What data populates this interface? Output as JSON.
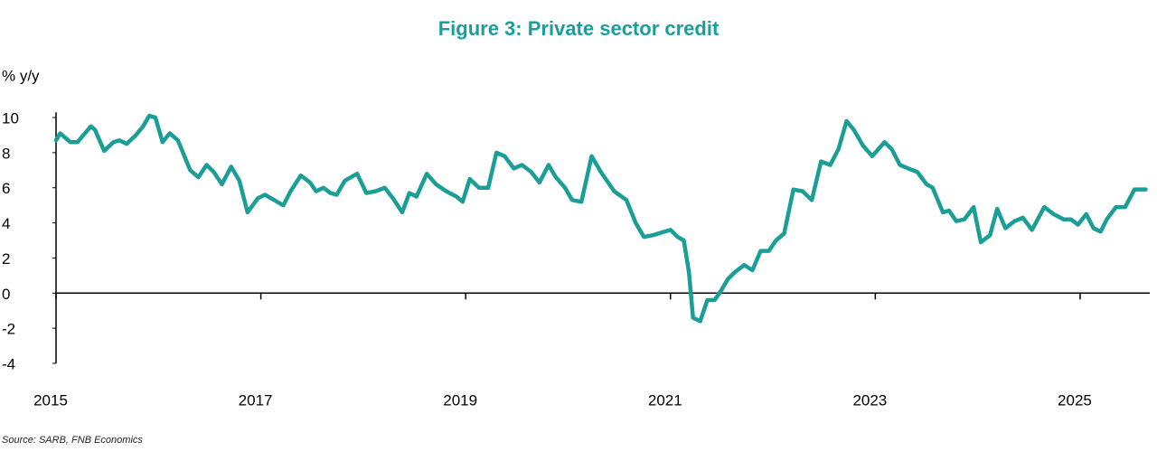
{
  "chart_data": {
    "type": "line",
    "title": "Figure 3: Private sector credit",
    "y_label": "% y/y",
    "source": "Source: SARB, FNB Economics",
    "color": "#1b9e96",
    "grid": false,
    "xlim": [
      2015,
      2025.68
    ],
    "xticks": [
      2015,
      2017,
      2019,
      2021,
      2023,
      2025
    ],
    "ylim": [
      -4,
      10.3
    ],
    "yticks": [
      -4,
      -2,
      0,
      2,
      4,
      6,
      8,
      10
    ],
    "x": [
      2015.0,
      2015.04,
      2015.14,
      2015.21,
      2015.34,
      2015.38,
      2015.47,
      2015.56,
      2015.62,
      2015.69,
      2015.78,
      2015.85,
      2015.91,
      2015.97,
      2016.04,
      2016.11,
      2016.19,
      2016.31,
      2016.39,
      2016.47,
      2016.54,
      2016.62,
      2016.71,
      2016.79,
      2016.87,
      2016.97,
      2017.04,
      2017.13,
      2017.22,
      2017.29,
      2017.39,
      2017.48,
      2017.54,
      2017.61,
      2017.68,
      2017.74,
      2017.82,
      2017.94,
      2018.03,
      2018.12,
      2018.21,
      2018.29,
      2018.38,
      2018.45,
      2018.52,
      2018.62,
      2018.71,
      2018.81,
      2018.91,
      2018.97,
      2019.04,
      2019.13,
      2019.22,
      2019.3,
      2019.38,
      2019.47,
      2019.55,
      2019.64,
      2019.72,
      2019.81,
      2019.88,
      2019.97,
      2020.04,
      2020.13,
      2020.23,
      2020.32,
      2020.45,
      2020.57,
      2020.66,
      2020.74,
      2020.83,
      2020.94,
      2021.0,
      2021.07,
      2021.13,
      2021.18,
      2021.22,
      2021.29,
      2021.36,
      2021.43,
      2021.49,
      2021.56,
      2021.63,
      2021.72,
      2021.8,
      2021.88,
      2021.96,
      2022.03,
      2022.11,
      2022.2,
      2022.29,
      2022.38,
      2022.47,
      2022.56,
      2022.64,
      2022.72,
      2022.79,
      2022.88,
      2022.97,
      2023.09,
      2023.16,
      2023.24,
      2023.32,
      2023.41,
      2023.5,
      2023.56,
      2023.66,
      2023.72,
      2023.79,
      2023.87,
      2023.96,
      2024.03,
      2024.12,
      2024.19,
      2024.27,
      2024.36,
      2024.44,
      2024.53,
      2024.65,
      2024.74,
      2024.84,
      2024.91,
      2024.98,
      2025.06,
      2025.13,
      2025.2,
      2025.26,
      2025.35,
      2025.44,
      2025.53,
      2025.64
    ],
    "values": [
      8.7,
      9.1,
      8.6,
      8.6,
      9.5,
      9.3,
      8.1,
      8.6,
      8.7,
      8.5,
      9.0,
      9.5,
      10.1,
      10.0,
      8.6,
      9.1,
      8.7,
      7.0,
      6.6,
      7.3,
      6.9,
      6.2,
      7.2,
      6.4,
      4.6,
      5.4,
      5.6,
      5.3,
      5.0,
      5.8,
      6.7,
      6.3,
      5.8,
      6.0,
      5.7,
      5.6,
      6.4,
      6.8,
      5.7,
      5.8,
      6.0,
      5.4,
      4.6,
      5.7,
      5.5,
      6.8,
      6.2,
      5.8,
      5.5,
      5.2,
      6.5,
      6.0,
      6.0,
      8.0,
      7.8,
      7.1,
      7.3,
      6.9,
      6.3,
      7.3,
      6.6,
      6.0,
      5.3,
      5.2,
      7.8,
      6.9,
      5.8,
      5.3,
      4.0,
      3.2,
      3.3,
      3.5,
      3.6,
      3.2,
      3.0,
      1.2,
      -1.4,
      -1.6,
      -0.4,
      -0.4,
      0.1,
      0.8,
      1.2,
      1.6,
      1.3,
      2.4,
      2.4,
      3.0,
      3.4,
      5.9,
      5.8,
      5.3,
      7.5,
      7.3,
      8.2,
      9.8,
      9.3,
      8.4,
      7.8,
      8.6,
      8.2,
      7.3,
      7.1,
      6.9,
      6.2,
      6.0,
      4.6,
      4.7,
      4.1,
      4.2,
      4.9,
      2.9,
      3.3,
      4.8,
      3.7,
      4.1,
      4.3,
      3.6,
      4.9,
      4.5,
      4.2,
      4.2,
      3.9,
      4.5,
      3.7,
      3.5,
      4.2,
      4.9,
      4.9,
      5.9,
      5.9
    ]
  }
}
